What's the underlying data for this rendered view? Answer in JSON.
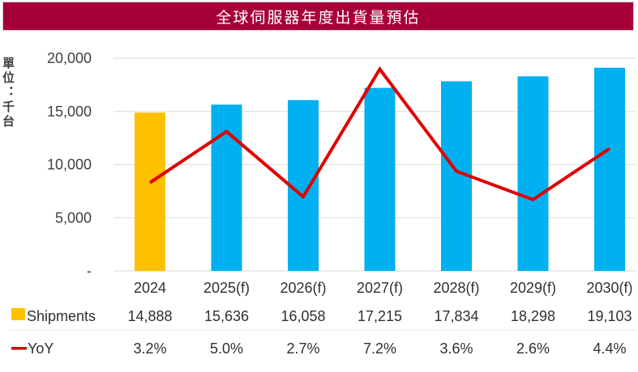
{
  "chart_data": {
    "type": "bar",
    "title": "全球伺服器年度出貨量預估",
    "ylabel": "單位：千台",
    "xlabel": "",
    "categories": [
      "2024",
      "2025(f)",
      "2026(f)",
      "2027(f)",
      "2028(f)",
      "2029(f)",
      "2030(f)"
    ],
    "ylim": [
      0,
      20000
    ],
    "yticks": [
      "-",
      "5,000",
      "10,000",
      "15,000",
      "20,000"
    ],
    "ytick_values": [
      0,
      5000,
      10000,
      15000,
      20000
    ],
    "grid": true,
    "series": [
      {
        "name": "Shipments",
        "type": "bar",
        "values": [
          14888,
          15636,
          16058,
          17215,
          17834,
          18298,
          19103
        ],
        "labels": [
          "14,888",
          "15,636",
          "16,058",
          "17,215",
          "17,834",
          "18,298",
          "19,103"
        ],
        "colors": [
          "#ffc000",
          "#00b0f0",
          "#00b0f0",
          "#00b0f0",
          "#00b0f0",
          "#00b0f0",
          "#00b0f0"
        ]
      },
      {
        "name": "YoY",
        "type": "line",
        "axis": "secondary",
        "values": [
          3.2,
          5.0,
          2.7,
          7.2,
          3.6,
          2.6,
          4.4
        ],
        "labels": [
          "3.2%",
          "5.0%",
          "2.7%",
          "7.2%",
          "3.6%",
          "2.6%",
          "4.4%"
        ],
        "color": "#e00000",
        "ylim": [
          0,
          7.5
        ]
      }
    ],
    "legend": "bottom-left data table",
    "colors": {
      "title_bg": "#a5003a",
      "legend_shipments": "#ffc000",
      "grid": "#e6e6e6"
    }
  }
}
